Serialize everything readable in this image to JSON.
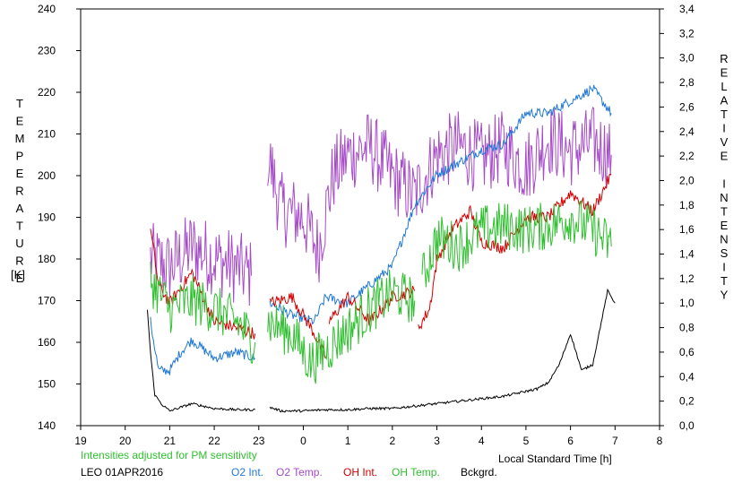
{
  "chart_data": {
    "type": "line",
    "title": "",
    "note": "Intensities adjusted for PM sensitivity",
    "station_label": "LEO 01APR2016",
    "xlabel": "Local Standard Time [h]",
    "ylabel_left": "TEMPERATURE",
    "ylabel_left_unit": "[K]",
    "ylabel_right": "RELATIVE INTENSITY",
    "x_ticks": [
      "19",
      "20",
      "21",
      "22",
      "23",
      "0",
      "1",
      "2",
      "3",
      "4",
      "5",
      "6",
      "7",
      "8"
    ],
    "x_range_hours_since_19": [
      0,
      13
    ],
    "y_left_ticks": [
      "140",
      "150",
      "160",
      "170",
      "180",
      "190",
      "200",
      "210",
      "220",
      "230",
      "240"
    ],
    "y_left_range": [
      140,
      240
    ],
    "y_right_ticks": [
      "0,0",
      "0,2",
      "0,4",
      "0,6",
      "0,8",
      "1,0",
      "1,2",
      "1,4",
      "1,6",
      "1,8",
      "2,0",
      "2,2",
      "2,4",
      "2,6",
      "2,8",
      "3,0",
      "3,2",
      "3,4"
    ],
    "y_right_range": [
      0.0,
      3.4
    ],
    "grid": false,
    "legend": [
      {
        "name": "O2 Int.",
        "color": "#1f78d4"
      },
      {
        "name": "O2 Temp.",
        "color": "#a64ac9"
      },
      {
        "name": "OH Int.",
        "color": "#d40000"
      },
      {
        "name": "OH Temp.",
        "color": "#2fbf2f"
      },
      {
        "name": "Bckgrd.",
        "color": "#000000"
      }
    ],
    "series": [
      {
        "name": "O2 Temp.",
        "axis": "left",
        "color": "#a64ac9",
        "noise": 9,
        "segments": [
          {
            "x": [
              "20:34",
              "21:00",
              "21:30",
              "22:00",
              "22:30",
              "22:50"
            ],
            "y": [
              180,
              178,
              183,
              180,
              178,
              176
            ]
          },
          {
            "x": [
              "23:12",
              "23:30",
              "00:00",
              "00:20",
              "00:40",
              "01:00",
              "01:30",
              "02:00",
              "02:30",
              "03:00",
              "03:30",
              "04:00",
              "04:30",
              "05:00",
              "05:30",
              "06:00",
              "06:30",
              "06:55"
            ],
            "y": [
              205,
              192,
              190,
              182,
              200,
              205,
              207,
              200,
              195,
              205,
              207,
              204,
              207,
              202,
              209,
              206,
              208,
              205
            ]
          }
        ]
      },
      {
        "name": "O2 Int.",
        "axis": "right",
        "color": "#1f78d4",
        "noise": 0.04,
        "segments": [
          {
            "x": [
              "20:34",
              "20:45",
              "21:00",
              "21:15",
              "21:30",
              "22:00",
              "22:30",
              "22:55"
            ],
            "y": [
              0.85,
              0.45,
              0.45,
              0.6,
              0.7,
              0.55,
              0.6,
              0.55
            ]
          },
          {
            "x": [
              "23:15",
              "23:45",
              "00:15",
              "00:30",
              "01:00",
              "01:30",
              "02:00",
              "02:30",
              "03:00",
              "03:30",
              "04:00",
              "04:30",
              "05:00",
              "05:30",
              "06:00",
              "06:30",
              "06:55"
            ],
            "y": [
              1.0,
              0.9,
              0.85,
              1.05,
              1.0,
              1.15,
              1.3,
              1.8,
              2.05,
              2.15,
              2.25,
              2.3,
              2.55,
              2.55,
              2.65,
              2.75,
              2.55
            ]
          }
        ]
      },
      {
        "name": "OH Int.",
        "axis": "right",
        "color": "#d40000",
        "noise": 0.05,
        "segments": [
          {
            "x": [
              "20:34",
              "20:45",
              "21:00",
              "21:30",
              "22:00",
              "22:30",
              "22:55"
            ],
            "y": [
              1.6,
              1.15,
              1.0,
              1.25,
              0.85,
              0.8,
              0.75
            ]
          },
          {
            "x": [
              "23:15",
              "23:45",
              "00:15",
              "00:30"
            ],
            "y": [
              1.0,
              1.05,
              0.75,
              0.55
            ]
          },
          {
            "x": [
              "00:35",
              "01:00",
              "01:30",
              "02:00",
              "02:30"
            ],
            "y": [
              0.85,
              1.05,
              0.85,
              1.05,
              1.1
            ]
          },
          {
            "x": [
              "02:35",
              "02:50",
              "03:00",
              "03:20",
              "03:45",
              "04:00",
              "04:30",
              "05:00",
              "05:30",
              "06:00",
              "06:30",
              "06:55"
            ],
            "y": [
              0.8,
              0.95,
              1.35,
              1.6,
              1.75,
              1.5,
              1.45,
              1.7,
              1.7,
              1.9,
              1.75,
              2.05
            ]
          }
        ]
      },
      {
        "name": "OH Temp.",
        "axis": "left",
        "color": "#2fbf2f",
        "noise": 6,
        "segments": [
          {
            "x": [
              "20:34",
              "21:00",
              "21:30",
              "22:00",
              "22:30",
              "22:55"
            ],
            "y": [
              175,
              168,
              170,
              168,
              165,
              160
            ]
          },
          {
            "x": [
              "23:12",
              "23:45",
              "00:10",
              "00:30",
              "01:00",
              "01:30",
              "02:00",
              "02:30"
            ],
            "y": [
              165,
              162,
              155,
              158,
              163,
              168,
              172,
              170
            ]
          },
          {
            "x": [
              "02:40",
              "03:00",
              "03:30",
              "04:00",
              "04:30",
              "05:00",
              "05:30",
              "06:00",
              "06:30",
              "06:55"
            ],
            "y": [
              175,
              185,
              183,
              187,
              188,
              187,
              188,
              190,
              187,
              183
            ]
          }
        ]
      },
      {
        "name": "Bckgrd.",
        "axis": "right",
        "color": "#000000",
        "noise": 0.01,
        "segments": [
          {
            "x": [
              "20:30",
              "20:34",
              "20:40",
              "20:50",
              "21:00",
              "21:30",
              "22:00",
              "22:30",
              "22:55"
            ],
            "y": [
              0.95,
              0.6,
              0.25,
              0.17,
              0.12,
              0.18,
              0.14,
              0.13,
              0.13
            ]
          },
          {
            "x": [
              "23:15",
              "23:30",
              "00:00",
              "00:30",
              "01:00",
              "01:30",
              "02:00",
              "02:30",
              "03:00",
              "03:30",
              "04:00",
              "04:30",
              "05:00",
              "05:15",
              "05:30",
              "05:45",
              "06:00",
              "06:15",
              "06:30",
              "06:40",
              "06:50",
              "07:00"
            ],
            "y": [
              0.15,
              0.12,
              0.12,
              0.13,
              0.13,
              0.14,
              0.14,
              0.16,
              0.18,
              0.2,
              0.22,
              0.24,
              0.28,
              0.3,
              0.35,
              0.5,
              0.75,
              0.45,
              0.5,
              0.8,
              1.1,
              1.0
            ]
          }
        ]
      }
    ]
  }
}
